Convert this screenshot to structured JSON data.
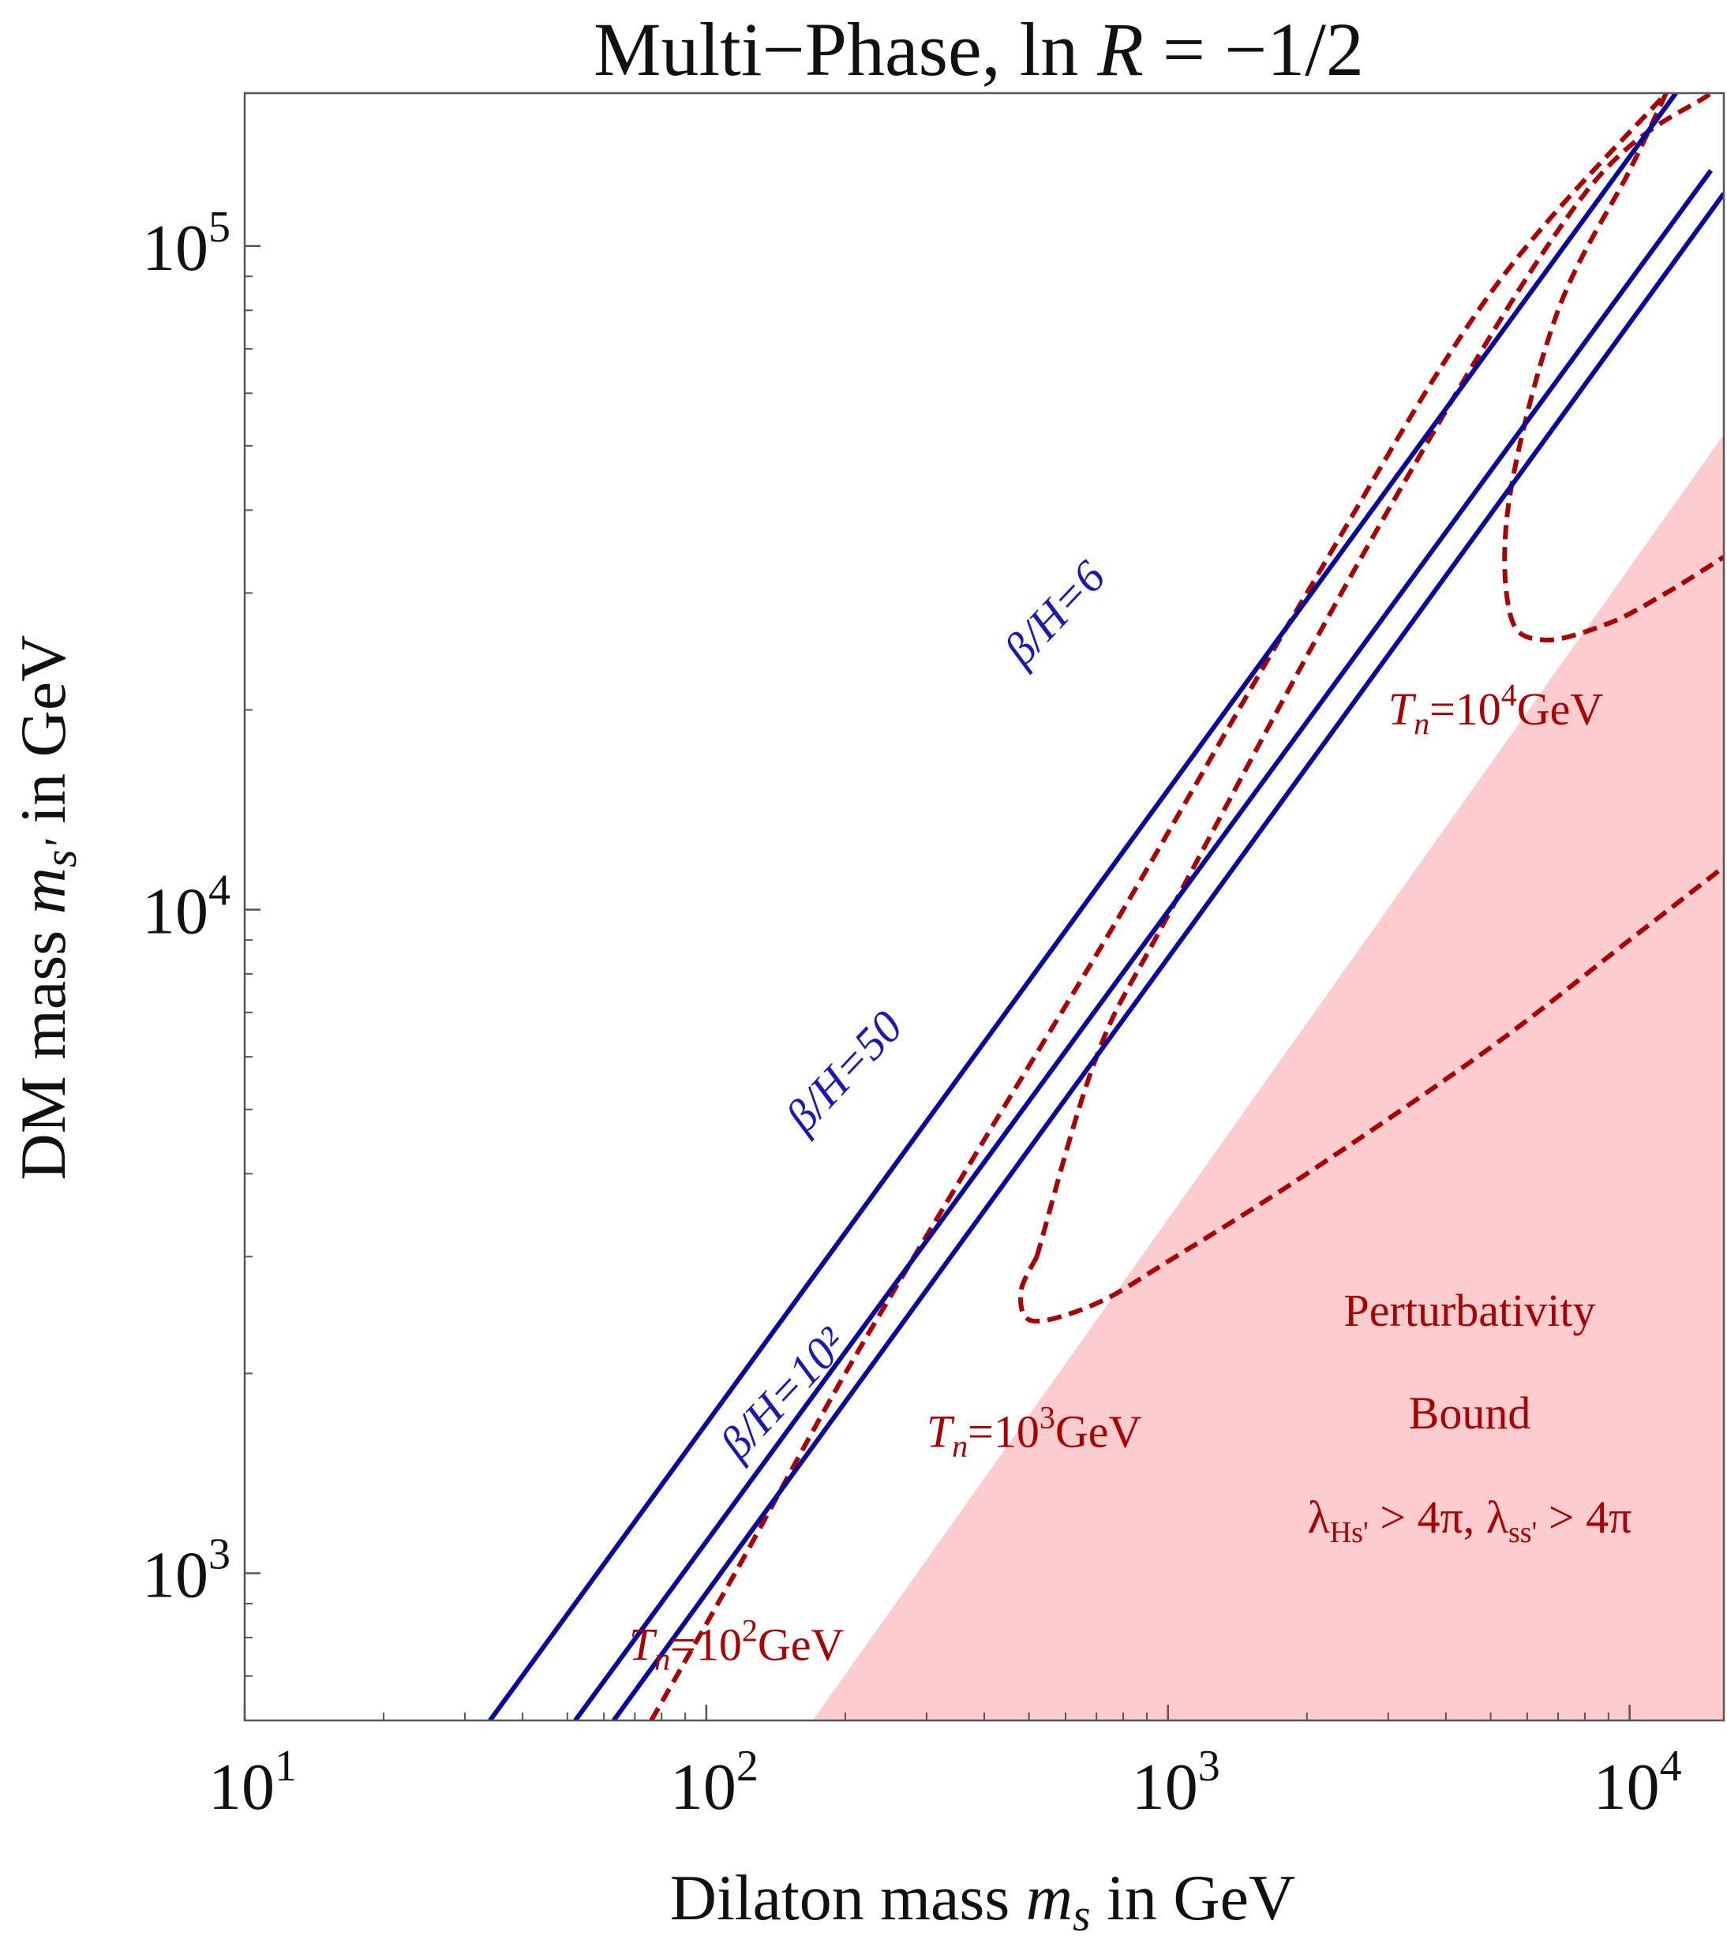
{
  "chart_data": {
    "type": "line",
    "title": "Multi−Phase, ln R = −1/2",
    "title_parts": {
      "prefix": "Multi−Phase, ln ",
      "var": "R",
      "suffix": " = −1/2"
    },
    "xlabel": "Dilaton mass m_s in GeV",
    "xlabel_parts": {
      "prefix": "Dilaton mass ",
      "var": "m",
      "sub": "s",
      "suffix": " in GeV"
    },
    "ylabel": "DM mass m_s' in GeV",
    "ylabel_parts": {
      "prefix": "DM mass ",
      "var": "m",
      "sub": "s'",
      "suffix": " in GeV"
    },
    "xscale": "log",
    "yscale": "log",
    "xlim": [
      10,
      16000
    ],
    "ylim": [
      600,
      170000
    ],
    "x_ticks": [
      {
        "value": 10,
        "base": "10",
        "exp": "1"
      },
      {
        "value": 100,
        "base": "10",
        "exp": "2"
      },
      {
        "value": 1000,
        "base": "10",
        "exp": "3"
      },
      {
        "value": 10000,
        "base": "10",
        "exp": "4"
      }
    ],
    "y_ticks": [
      {
        "value": 1000,
        "base": "10",
        "exp": "3"
      },
      {
        "value": 10000,
        "base": "10",
        "exp": "4"
      },
      {
        "value": 100000,
        "base": "10",
        "exp": "5"
      }
    ],
    "grid": false,
    "colors": {
      "beta": "#0a0a9a",
      "tn": "#a80000",
      "region": "#fcccce",
      "text_red": "#a80000",
      "text_blue": "#1a1ab0"
    },
    "beta_contours": [
      {
        "name": "β/H=6",
        "points": [
          [
            34,
            600
          ],
          [
            12600,
            170000
          ]
        ],
        "label": {
          "text": "β/H=6",
          "at": [
            600,
            27000
          ],
          "angle": -46.7
        }
      },
      {
        "name": "β/H=50",
        "points": [
          [
            52,
            600
          ],
          [
            15000,
            130000
          ]
        ],
        "label": {
          "text": "β/H=50",
          "at": [
            210,
            5500
          ],
          "angle": -46.7
        }
      },
      {
        "name": "β/H=10²",
        "points": [
          [
            63,
            600
          ],
          [
            16000,
            120000
          ]
        ],
        "label": {
          "text": "β/H=10²",
          "at": [
            155,
            1800
          ],
          "angle": -46.7
        }
      }
    ],
    "tn_contours": [
      {
        "name": "T_n=10^2 GeV",
        "points": [
          [
            76,
            600
          ],
          [
            120,
            1050
          ],
          [
            200,
            2000
          ],
          [
            400,
            4500
          ],
          [
            800,
            10000
          ],
          [
            2000,
            30000
          ],
          [
            5000,
            85000
          ],
          [
            12000,
            170000
          ]
        ]
      },
      {
        "name": "T_n=10^3 GeV upper",
        "points": [
          [
            520,
            3000
          ],
          [
            700,
            6000
          ],
          [
            1000,
            9800
          ],
          [
            3000,
            40000
          ],
          [
            8000,
            120000
          ],
          [
            15000,
            170000
          ]
        ]
      },
      {
        "name": "T_n=10^3 GeV tip",
        "points": [
          [
            520,
            3000
          ],
          [
            480,
            2650
          ],
          [
            510,
            2400
          ],
          [
            700,
            2550
          ],
          [
            1000,
            2950
          ],
          [
            2000,
            4000
          ],
          [
            5000,
            6200
          ],
          [
            10000,
            9000
          ],
          [
            16000,
            11600
          ]
        ]
      },
      {
        "name": "T_n=10^4 GeV",
        "points": [
          [
            12000,
            170000
          ],
          [
            10000,
            130000
          ],
          [
            7000,
            80000
          ],
          [
            5500,
            42000
          ],
          [
            5500,
            28000
          ],
          [
            6500,
            25500
          ],
          [
            9000,
            27000
          ],
          [
            12000,
            30000
          ],
          [
            16000,
            34000
          ]
        ]
      }
    ],
    "labels": {
      "tn2": {
        "var": "T",
        "sub": "n",
        "mid": "=10",
        "exp": "2",
        "unit": "GeV",
        "at": [
          68,
          740
        ]
      },
      "tn3": {
        "var": "T",
        "sub": "n",
        "mid": "=10",
        "exp": "3",
        "unit": "GeV",
        "at": [
          300,
          1550
        ]
      },
      "tn4": {
        "var": "T",
        "sub": "n",
        "mid": "=10",
        "exp": "4",
        "unit": "GeV",
        "at": [
          3000,
          19000
        ]
      }
    },
    "region": {
      "name": "Perturbativity Bound",
      "line1": "Perturbativity",
      "line2": "Bound",
      "condition_parts": {
        "l1": "λ",
        "s1": "Hs'",
        "mid": " > 4π, ",
        "l2": "λ",
        "s2": "ss'",
        "end": " > 4π"
      },
      "boundary": [
        [
          170,
          600
        ],
        [
          16000,
          52000
        ]
      ]
    }
  }
}
